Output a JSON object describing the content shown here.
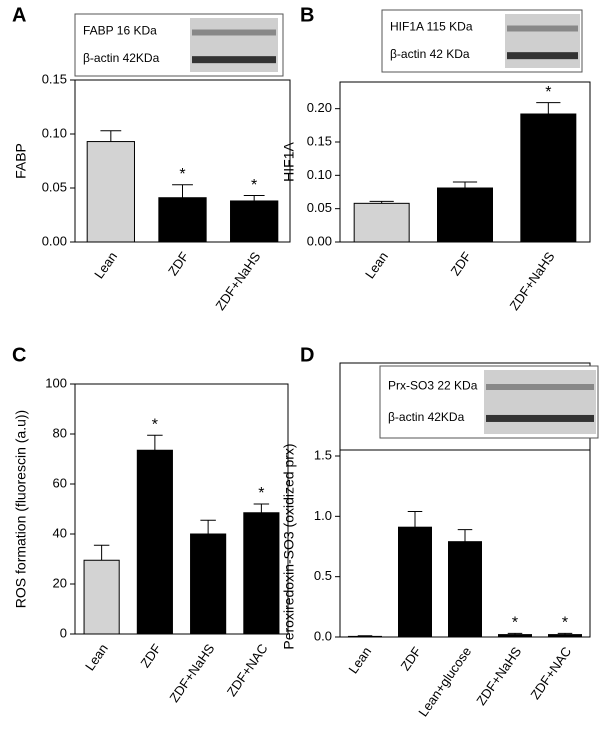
{
  "chart_data": [
    {
      "type": "bar",
      "panel": "A",
      "ylabel": "FABP",
      "categories": [
        "Lean",
        "ZDF",
        "ZDF+NaHS"
      ],
      "values": [
        0.093,
        0.041,
        0.038
      ],
      "errors": [
        0.01,
        0.012,
        0.005
      ],
      "colors": [
        "#d3d3d3",
        "#000000",
        "#000000"
      ],
      "markers": [
        null,
        "*",
        "*"
      ],
      "ylim": [
        0,
        0.15
      ],
      "yticks": [
        {
          "value": 0,
          "label": "0.00"
        },
        {
          "value": 0.05,
          "label": "0.05"
        },
        {
          "value": 0.1,
          "label": "0.10"
        },
        {
          "value": 0.15,
          "label": "0.15"
        }
      ],
      "inset": [
        "FABP 16 KDa",
        "β-actin 42KDa"
      ]
    },
    {
      "type": "bar",
      "panel": "B",
      "ylabel": "HIF1A",
      "categories": [
        "Lean",
        "ZDF",
        "ZDF+NaHS"
      ],
      "values": [
        0.058,
        0.081,
        0.192
      ],
      "errors": [
        0.003,
        0.009,
        0.017
      ],
      "colors": [
        "#d3d3d3",
        "#000000",
        "#000000"
      ],
      "markers": [
        null,
        null,
        "*"
      ],
      "ylim": [
        0,
        0.24
      ],
      "yticks": [
        {
          "value": 0,
          "label": "0.00"
        },
        {
          "value": 0.05,
          "label": "0.05"
        },
        {
          "value": 0.1,
          "label": "0.10"
        },
        {
          "value": 0.15,
          "label": "0.15"
        },
        {
          "value": 0.2,
          "label": "0.20"
        }
      ],
      "inset": [
        "HIF1A 115 KDa",
        "β-actin 42 KDa"
      ]
    },
    {
      "type": "bar",
      "panel": "C",
      "ylabel": "ROS formation (fluorescin (a.u))",
      "categories": [
        "Lean",
        "ZDF",
        "ZDF+NaHS",
        "ZDF+NAC"
      ],
      "values": [
        29.5,
        73.5,
        40,
        48.5
      ],
      "errors": [
        6,
        6,
        5.5,
        3.5
      ],
      "colors": [
        "#d3d3d3",
        "#000000",
        "#000000",
        "#000000"
      ],
      "markers": [
        null,
        "*",
        null,
        "*"
      ],
      "ylim": [
        0,
        100
      ],
      "yticks": [
        0,
        20,
        40,
        60,
        80,
        100
      ]
    },
    {
      "type": "bar",
      "panel": "D",
      "ylabel": "Peroxiredoxin-SO3 (oxidized prx)",
      "categories": [
        "Lean",
        "ZDF",
        "Lean+glucose",
        "ZDF+NaHS",
        "ZDF+NAC"
      ],
      "values": [
        0.005,
        0.91,
        0.79,
        0.02,
        0.02
      ],
      "errors": [
        0.005,
        0.13,
        0.1,
        0.01,
        0.01
      ],
      "colors": [
        "#000000",
        "#000000",
        "#000000",
        "#000000",
        "#000000"
      ],
      "markers": [
        null,
        null,
        null,
        "*",
        "*"
      ],
      "ylim": [
        0,
        1.5
      ],
      "yticks": [
        {
          "value": 0,
          "label": "0.0"
        },
        {
          "value": 0.5,
          "label": "0.5"
        },
        {
          "value": 1,
          "label": "1.0"
        },
        {
          "value": 1.5,
          "label": "1.5"
        }
      ],
      "inset": [
        "Prx-SO3 22 KDa",
        "β-actin 42KDa"
      ]
    }
  ]
}
